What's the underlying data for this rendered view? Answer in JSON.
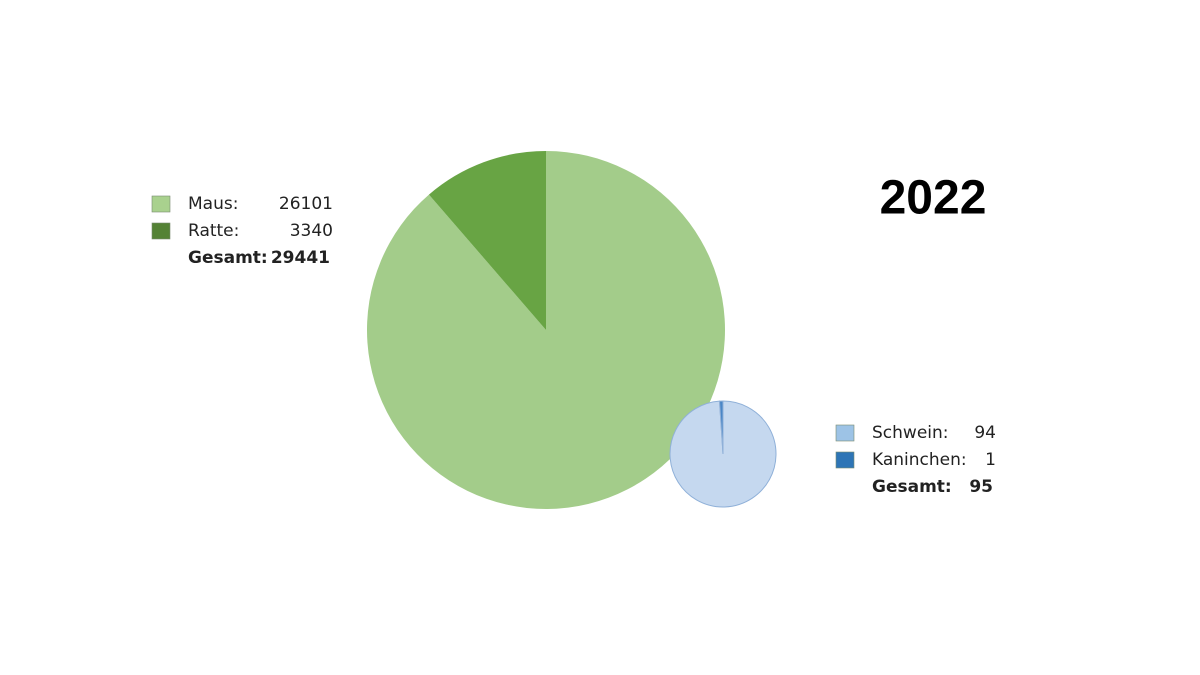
{
  "title": "2022",
  "chart_data": [
    {
      "type": "pie",
      "categories": [
        "Maus:",
        "Ratte:"
      ],
      "values": [
        26101,
        3340
      ],
      "colors": [
        "#a9d18e",
        "#548235"
      ],
      "total_label": "Gesamt:",
      "total": 29441
    },
    {
      "type": "pie",
      "categories": [
        "Schwein:",
        "Kaninchen:"
      ],
      "values": [
        94,
        1
      ],
      "colors": [
        "#9dc3e6",
        "#2e75b6"
      ],
      "total_label": "Gesamt:",
      "total": 95
    }
  ]
}
